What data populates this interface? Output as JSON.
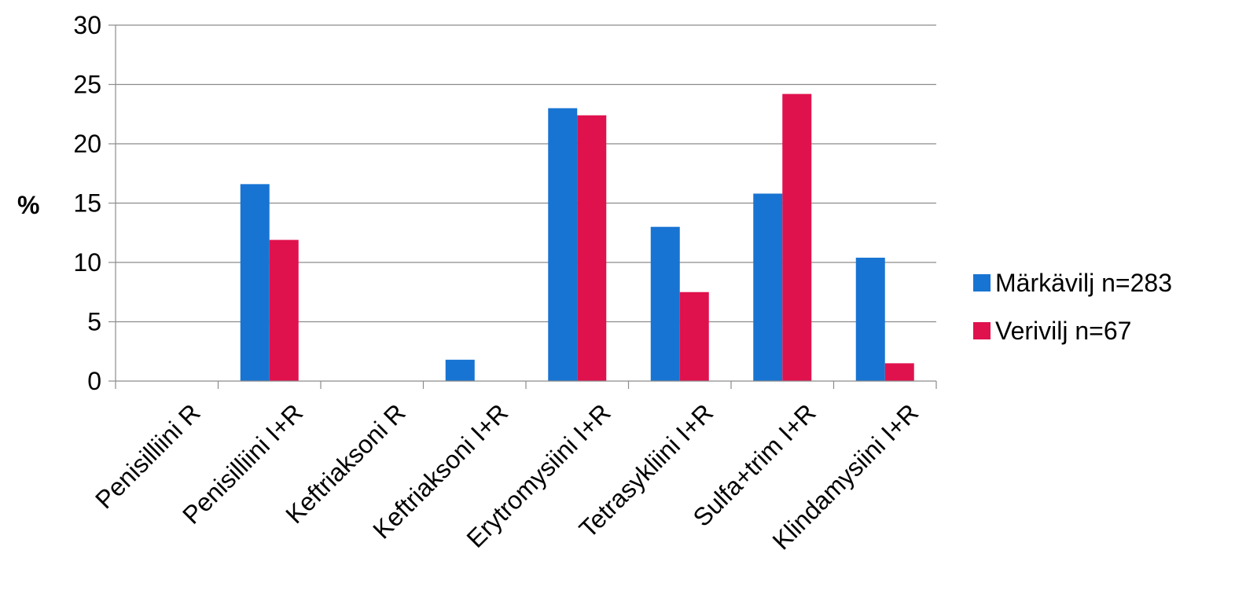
{
  "chart_data": {
    "type": "bar",
    "title": "",
    "xlabel": "",
    "ylabel": "%",
    "ylim": [
      0,
      30
    ],
    "yticks": [
      0,
      5,
      10,
      15,
      20,
      25,
      30
    ],
    "grid": true,
    "legend_position": "right",
    "categories": [
      "Penisilliini R",
      "Penisilliini I+R",
      "Keftriaksoni R",
      "Keftriaksoni I+R",
      "Erytromysiini I+R",
      "Tetrasykliini I+R",
      "Sulfa+trim I+R",
      "Klindamysiini I+R"
    ],
    "series": [
      {
        "name": "Märkävilj n=283",
        "color": "#1874D2",
        "values": [
          0,
          16.6,
          0,
          1.8,
          23.0,
          13.0,
          15.8,
          10.4
        ]
      },
      {
        "name": "Verivilj n=67",
        "color": "#E0124E",
        "values": [
          0,
          11.9,
          0,
          0,
          22.4,
          7.5,
          24.2,
          1.5
        ]
      }
    ]
  }
}
